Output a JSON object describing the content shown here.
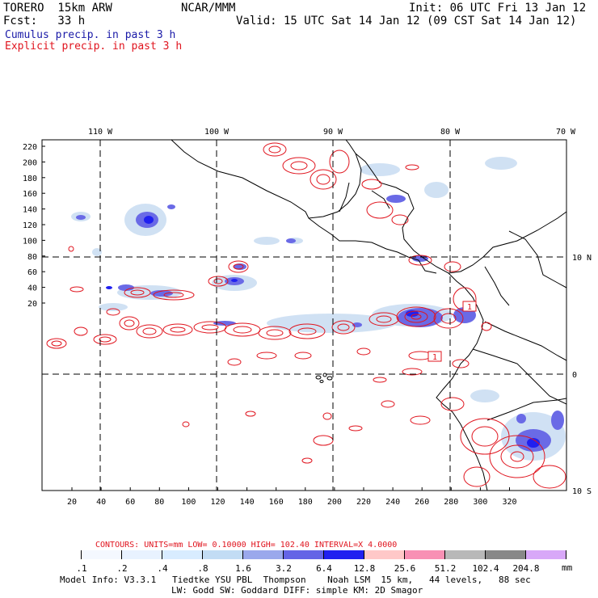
{
  "header": {
    "model": "TORERO  15km ARW",
    "center": "NCAR/MMM",
    "init": "Init: 06 UTC Fri 13 Jan 12",
    "fcst": "Fcst:   33 h",
    "valid": "Valid: 15 UTC Sat 14 Jan 12 (09 CST Sat 14 Jan 12)",
    "legend_cumulus": "Cumulus precip. in past 3 h",
    "legend_explicit": "Explicit precip. in past 3 h",
    "cumulus_color": "#1a1aa8",
    "explicit_color": "#e0141e"
  },
  "map": {
    "lon_labels": [
      "110 W",
      "100 W",
      "90 W",
      "80 W",
      "70 W"
    ],
    "lat_labels": [
      "10 N",
      "0",
      "10 S"
    ],
    "y_ticks": [
      "220",
      "200",
      "180",
      "160",
      "140",
      "120",
      "100",
      "80",
      "60",
      "40",
      "20"
    ],
    "x_ticks": [
      "20",
      "40",
      "60",
      "80",
      "100",
      "120",
      "140",
      "160",
      "180",
      "200",
      "220",
      "240",
      "260",
      "280",
      "300",
      "320"
    ],
    "box_labels": [
      "1",
      "1"
    ]
  },
  "contour_info": {
    "text": "CONTOURS:  UNITS=mm  LOW= 0.10000      HIGH=  102.40      INTERVAL=X  4.0000"
  },
  "colorbar": {
    "labels": [
      ".1",
      ".2",
      ".4",
      ".8",
      "1.6",
      "3.2",
      "6.4",
      "12.8",
      "25.6",
      "51.2",
      "102.4",
      "204.8"
    ],
    "units": "mm",
    "colors": [
      "#ffffff",
      "#f4f8ff",
      "#e8f2ff",
      "#d8ecff",
      "#c2dcf4",
      "#9aa8ec",
      "#6464e6",
      "#2020f0",
      "#ffc8c8",
      "#f890b4",
      "#b8b8b8",
      "#888888",
      "#d8a8f8"
    ]
  },
  "footer": {
    "line1": "Model Info: V3.3.1   Tiedtke YSU PBL  Thompson    Noah LSM  15 km,   44 levels,   88 sec",
    "line2": "LW: Godd SW: Goddard DIFF: simple KM: 2D Smagor"
  }
}
